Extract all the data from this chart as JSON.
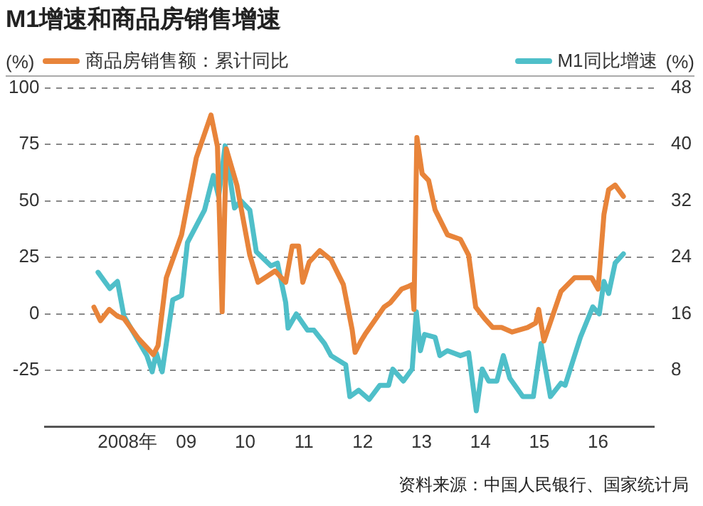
{
  "chart_data": {
    "type": "line",
    "title": "M1增速和商品房销售增速",
    "ylabel": "(%)",
    "y2label": "(%)",
    "annotations": [
      "资料来源：中国人民银行、国家统计局"
    ],
    "xlim": [
      2006.6,
      2016.95
    ],
    "xticks": [
      {
        "value": 2008,
        "label": "2008年"
      },
      {
        "value": 2009,
        "label": "09"
      },
      {
        "value": 2010,
        "label": "10"
      },
      {
        "value": 2011,
        "label": "11"
      },
      {
        "value": 2012,
        "label": "12"
      },
      {
        "value": 2013,
        "label": "13"
      },
      {
        "value": 2014,
        "label": "14"
      },
      {
        "value": 2015,
        "label": "15"
      },
      {
        "value": 2016,
        "label": "16"
      }
    ],
    "ylim": [
      -50,
      100
    ],
    "yticks": [
      -25,
      0,
      25,
      50,
      75,
      100
    ],
    "y2lim": [
      0,
      48
    ],
    "y2ticks": [
      8,
      16,
      24,
      32,
      40,
      48
    ],
    "grid": "y",
    "legend": "top",
    "marker": "none",
    "line_style": "solid",
    "series": [
      {
        "name": "商品房销售额：累计同比",
        "color": "#e8843a",
        "x": [
          2007.43,
          2007.54,
          2007.69,
          2007.83,
          2007.94,
          2008.19,
          2008.44,
          2008.52,
          2008.66,
          2008.92,
          2009.17,
          2009.42,
          2009.53,
          2009.61,
          2009.68,
          2009.86,
          2010.08,
          2010.22,
          2010.51,
          2010.69,
          2010.8,
          2010.91,
          2010.98,
          2011.09,
          2011.27,
          2011.46,
          2011.67,
          2011.82,
          2011.87,
          2011.97,
          2012.04,
          2012.36,
          2012.47,
          2012.66,
          2012.76,
          2012.84,
          2012.87,
          2012.92,
          2013.01,
          2013.12,
          2013.23,
          2013.44,
          2013.66,
          2013.8,
          2013.92,
          2014.07,
          2014.21,
          2014.36,
          2014.54,
          2014.8,
          2014.94,
          2014.99,
          2015.08,
          2015.37,
          2015.6,
          2015.89,
          2016,
          2016.1,
          2016.18,
          2016.29,
          2016.43
        ],
        "values": [
          3,
          -3,
          2,
          -1,
          -2,
          -11,
          -18,
          -14,
          16,
          35,
          69,
          88,
          74,
          1,
          73,
          57,
          26,
          14,
          19,
          14,
          30,
          30,
          14,
          23,
          28,
          24,
          13,
          -7,
          -17,
          -12,
          -9,
          3,
          5,
          11,
          12,
          13,
          2,
          78,
          62,
          59,
          46,
          35,
          33,
          26,
          3,
          -2,
          -6,
          -6,
          -8,
          -6,
          -4,
          2,
          -12,
          10,
          16,
          16,
          11,
          44,
          55,
          57,
          52
        ]
      },
      {
        "name": "M1同比增速",
        "color": "#4fbfc9",
        "axis": "y2",
        "x": [
          2007.5,
          2007.7,
          2007.83,
          2007.94,
          2008.19,
          2008.33,
          2008.42,
          2008.49,
          2008.59,
          2008.77,
          2008.92,
          2009.02,
          2009.31,
          2009.46,
          2009.55,
          2009.66,
          2009.82,
          2009.93,
          2010.08,
          2010.19,
          2010.44,
          2010.55,
          2010.69,
          2010.73,
          2010.87,
          2011.06,
          2011.17,
          2011.35,
          2011.46,
          2011.71,
          2011.78,
          2011.93,
          2012.11,
          2012.29,
          2012.44,
          2012.51,
          2012.69,
          2012.84,
          2012.91,
          2012.98,
          2013.05,
          2013.23,
          2013.31,
          2013.44,
          2013.66,
          2013.8,
          2013.93,
          2014.03,
          2014.14,
          2014.28,
          2014.39,
          2014.5,
          2014.72,
          2014.9,
          2015.03,
          2015.19,
          2015.37,
          2015.44,
          2015.7,
          2015.91,
          2016.02,
          2016.1,
          2016.18,
          2016.29,
          2016.43
        ],
        "values": [
          21.9,
          19.6,
          20.6,
          15.7,
          12.1,
          10.1,
          7.8,
          10.5,
          7.8,
          18,
          18.6,
          26.1,
          30.7,
          35.6,
          32.6,
          39.8,
          31,
          32,
          30.7,
          24.8,
          22.8,
          23.2,
          17.6,
          14,
          16,
          13.7,
          13.7,
          11.8,
          10.1,
          8.8,
          4.3,
          5.2,
          3.9,
          5.9,
          5.9,
          8.2,
          6.5,
          8.2,
          16.3,
          10.8,
          13.1,
          12.7,
          10.1,
          10.8,
          10.1,
          10.5,
          2.3,
          8.2,
          6.5,
          6.5,
          10.1,
          6.9,
          4.3,
          4.3,
          11.8,
          4.3,
          6.2,
          5.9,
          12.7,
          17,
          16,
          20.6,
          18.9,
          23.2,
          24.5
        ]
      }
    ]
  }
}
